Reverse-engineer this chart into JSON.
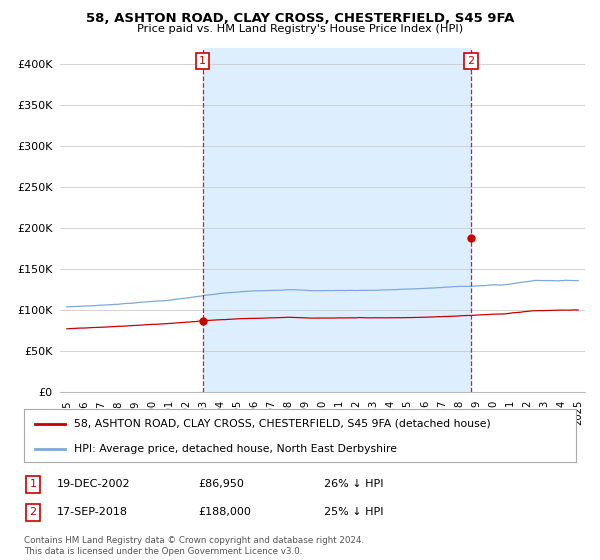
{
  "title": "58, ASHTON ROAD, CLAY CROSS, CHESTERFIELD, S45 9FA",
  "subtitle": "Price paid vs. HM Land Registry's House Price Index (HPI)",
  "ylabel_ticks": [
    "£0",
    "£50K",
    "£100K",
    "£150K",
    "£200K",
    "£250K",
    "£300K",
    "£350K",
    "£400K"
  ],
  "ytick_values": [
    0,
    50000,
    100000,
    150000,
    200000,
    250000,
    300000,
    350000,
    400000
  ],
  "ylim": [
    0,
    420000
  ],
  "sale1_date": "19-DEC-2002",
  "sale1_price": 86950,
  "sale1_label": "£86,950",
  "sale1_hpi_pct": "26% ↓ HPI",
  "sale2_date": "17-SEP-2018",
  "sale2_price": 188000,
  "sale2_label": "£188,000",
  "sale2_hpi_pct": "25% ↓ HPI",
  "legend_label1": "58, ASHTON ROAD, CLAY CROSS, CHESTERFIELD, S45 9FA (detached house)",
  "legend_label2": "HPI: Average price, detached house, North East Derbyshire",
  "footer": "Contains HM Land Registry data © Crown copyright and database right 2024.\nThis data is licensed under the Open Government Licence v3.0.",
  "sale1_x": 2002.97,
  "sale2_x": 2018.72,
  "red_line_color": "#cc0000",
  "blue_line_color": "#7aaadd",
  "shade_color": "#ddeeff",
  "vline_color": "#cc0000",
  "background_color": "#ffffff",
  "grid_color": "#cccccc",
  "xlim_left": 1994.6,
  "xlim_right": 2025.4
}
